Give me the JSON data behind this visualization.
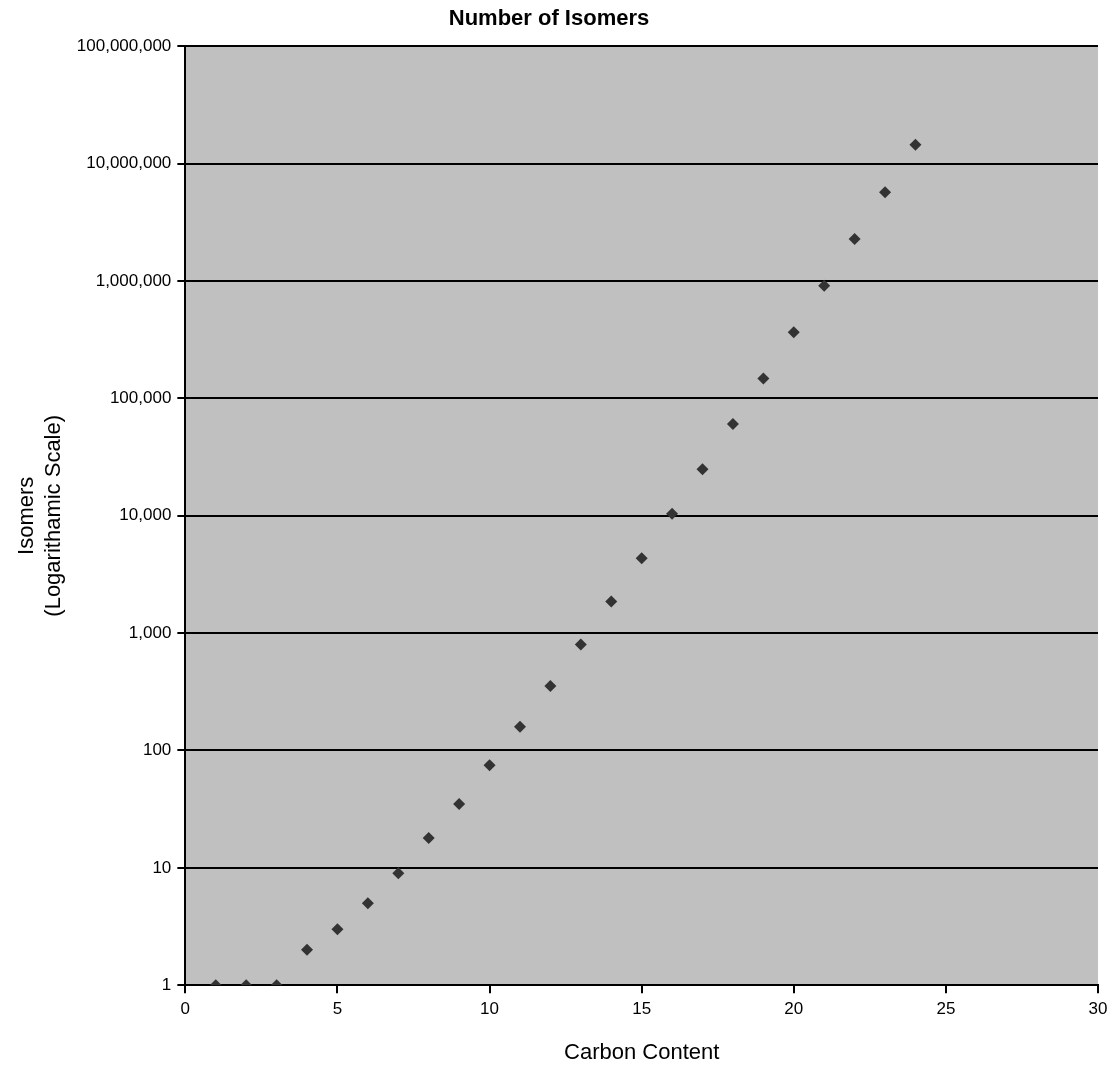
{
  "chart_data": {
    "type": "scatter",
    "title": "Number of Isomers",
    "xlabel": "Carbon Content",
    "ylabel": "Isomers\n(Logarithamic Scale)",
    "x": [
      1,
      2,
      3,
      4,
      5,
      6,
      7,
      8,
      9,
      10,
      11,
      12,
      13,
      14,
      15,
      16,
      17,
      18,
      19,
      20,
      21,
      22,
      23,
      24
    ],
    "series": [
      {
        "color": "#333333",
        "values": [
          1,
          1,
          1,
          2,
          3,
          5,
          9,
          18,
          35,
          75,
          159,
          355,
          802,
          1860,
          4350,
          10400,
          24900,
          60500,
          148000,
          366000,
          911000,
          2280000,
          5730000,
          14500000
        ]
      }
    ],
    "xlim": [
      0,
      30
    ],
    "xticks": [
      0,
      5,
      10,
      15,
      20,
      25,
      30
    ],
    "ylim": [
      1,
      100000000
    ],
    "yticks": [
      {
        "value": 1,
        "label": "1"
      },
      {
        "value": 10,
        "label": "10"
      },
      {
        "value": 100,
        "label": "100"
      },
      {
        "value": 1000,
        "label": "1,000"
      },
      {
        "value": 10000,
        "label": "10,000"
      },
      {
        "value": 100000,
        "label": "100,000"
      },
      {
        "value": 1000000,
        "label": "1,000,000"
      },
      {
        "value": 10000000,
        "label": "10,000,000"
      },
      {
        "value": 100000000,
        "label": "100,000,000"
      }
    ],
    "log": "y",
    "grid": "y",
    "marker": "diamond",
    "legend": false
  }
}
